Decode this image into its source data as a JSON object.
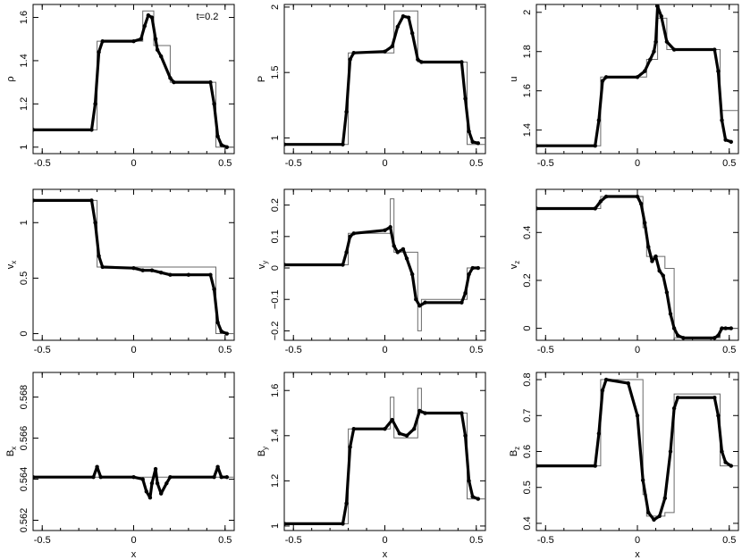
{
  "chart_data": [
    {
      "type": "line",
      "ylabel": "ρ",
      "ylabel_sub": "",
      "xlabel": "",
      "annotation": "t=0.2",
      "xlim": [
        -0.55,
        0.55
      ],
      "ylim": [
        0.97,
        1.66
      ],
      "xticks": [
        -0.5,
        0,
        0.5
      ],
      "xtick_labels": [
        "-0.5",
        "0",
        "0.5"
      ],
      "yticks": [
        1.0,
        1.2,
        1.4,
        1.6
      ],
      "ytick_labels": [
        "1",
        "1.2",
        "1.4",
        "1.6"
      ],
      "series": [
        {
          "kind": "reference",
          "x": [
            -0.55,
            -0.2,
            -0.2,
            0.05,
            0.05,
            0.11,
            0.11,
            0.16,
            0.16,
            0.2,
            0.2,
            0.45,
            0.45,
            0.55
          ],
          "y": [
            1.08,
            1.08,
            1.49,
            1.49,
            1.63,
            1.63,
            1.47,
            1.47,
            1.47,
            1.47,
            1.3,
            1.3,
            1.0,
            1.0
          ]
        },
        {
          "kind": "simulation",
          "x": [
            -0.55,
            -0.23,
            -0.21,
            -0.19,
            -0.17,
            0.0,
            0.04,
            0.06,
            0.08,
            0.1,
            0.12,
            0.13,
            0.15,
            0.2,
            0.22,
            0.42,
            0.44,
            0.46,
            0.48,
            0.51
          ],
          "y": [
            1.08,
            1.08,
            1.2,
            1.44,
            1.49,
            1.49,
            1.5,
            1.56,
            1.61,
            1.6,
            1.5,
            1.45,
            1.42,
            1.32,
            1.3,
            1.3,
            1.2,
            1.05,
            1.01,
            1.0
          ]
        }
      ]
    },
    {
      "type": "line",
      "ylabel": "P",
      "ylabel_sub": "",
      "xlabel": "",
      "xlim": [
        -0.55,
        0.55
      ],
      "ylim": [
        0.88,
        2.02
      ],
      "xticks": [
        -0.5,
        0,
        0.5
      ],
      "xtick_labels": [
        "-0.5",
        "0",
        "0.5"
      ],
      "yticks": [
        1.0,
        1.5,
        2.0
      ],
      "ytick_labels": [
        "1",
        "1.5",
        "2"
      ],
      "series": [
        {
          "kind": "reference",
          "x": [
            -0.55,
            -0.2,
            -0.2,
            0.05,
            0.05,
            0.18,
            0.18,
            0.45,
            0.45,
            0.55
          ],
          "y": [
            0.95,
            0.95,
            1.65,
            1.65,
            1.97,
            1.97,
            1.58,
            1.58,
            0.95,
            0.95
          ]
        },
        {
          "kind": "simulation",
          "x": [
            -0.55,
            -0.23,
            -0.21,
            -0.19,
            -0.17,
            0.0,
            0.04,
            0.07,
            0.1,
            0.13,
            0.15,
            0.18,
            0.2,
            0.42,
            0.44,
            0.46,
            0.48,
            0.51
          ],
          "y": [
            0.95,
            0.95,
            1.2,
            1.6,
            1.65,
            1.66,
            1.7,
            1.85,
            1.93,
            1.92,
            1.8,
            1.6,
            1.58,
            1.58,
            1.3,
            1.05,
            0.97,
            0.96
          ]
        }
      ]
    },
    {
      "type": "line",
      "ylabel": "u",
      "ylabel_sub": "",
      "xlabel": "",
      "xlim": [
        -0.55,
        0.55
      ],
      "ylim": [
        1.28,
        2.04
      ],
      "xticks": [
        -0.5,
        0,
        0.5
      ],
      "xtick_labels": [
        "-0.5",
        "0",
        "0.5"
      ],
      "yticks": [
        1.4,
        1.6,
        1.8,
        2.0
      ],
      "ytick_labels": [
        "1.4",
        "1.6",
        "1.8",
        "2"
      ],
      "series": [
        {
          "kind": "reference",
          "x": [
            -0.55,
            -0.2,
            -0.2,
            0.05,
            0.05,
            0.11,
            0.11,
            0.16,
            0.16,
            0.45,
            0.45,
            0.55
          ],
          "y": [
            1.32,
            1.32,
            1.67,
            1.67,
            1.76,
            1.76,
            1.97,
            1.97,
            1.81,
            1.81,
            1.5,
            1.5
          ]
        },
        {
          "kind": "simulation",
          "x": [
            -0.55,
            -0.23,
            -0.21,
            -0.19,
            -0.17,
            0.0,
            0.04,
            0.07,
            0.09,
            0.1,
            0.11,
            0.13,
            0.16,
            0.2,
            0.42,
            0.44,
            0.46,
            0.48,
            0.51
          ],
          "y": [
            1.32,
            1.32,
            1.45,
            1.65,
            1.67,
            1.67,
            1.7,
            1.76,
            1.8,
            1.85,
            2.03,
            1.98,
            1.85,
            1.81,
            1.81,
            1.7,
            1.45,
            1.35,
            1.34
          ]
        }
      ]
    },
    {
      "type": "line",
      "ylabel": "v",
      "ylabel_sub": "x",
      "xlabel": "",
      "xlim": [
        -0.55,
        0.55
      ],
      "ylim": [
        -0.06,
        1.3
      ],
      "xticks": [
        -0.5,
        0,
        0.5
      ],
      "xtick_labels": [
        "-0.5",
        "0",
        "0.5"
      ],
      "yticks": [
        0.0,
        0.5,
        1.0
      ],
      "ytick_labels": [
        "0",
        "0.5",
        "1"
      ],
      "series": [
        {
          "kind": "reference",
          "x": [
            -0.55,
            -0.2,
            -0.2,
            0.45,
            0.45,
            0.55
          ],
          "y": [
            1.2,
            1.2,
            0.6,
            0.6,
            0.0,
            0.0
          ]
        },
        {
          "kind": "simulation",
          "x": [
            -0.55,
            -0.23,
            -0.21,
            -0.19,
            -0.17,
            0.0,
            0.05,
            0.1,
            0.15,
            0.2,
            0.3,
            0.42,
            0.44,
            0.46,
            0.48,
            0.51
          ],
          "y": [
            1.2,
            1.2,
            1.0,
            0.7,
            0.6,
            0.59,
            0.57,
            0.57,
            0.55,
            0.53,
            0.53,
            0.53,
            0.4,
            0.1,
            0.02,
            0.0
          ]
        }
      ]
    },
    {
      "type": "line",
      "ylabel": "v",
      "ylabel_sub": "y",
      "xlabel": "",
      "xlim": [
        -0.55,
        0.55
      ],
      "ylim": [
        -0.23,
        0.25
      ],
      "xticks": [
        -0.5,
        0,
        0.5
      ],
      "xtick_labels": [
        "-0.5",
        "0",
        "0.5"
      ],
      "yticks": [
        -0.2,
        -0.1,
        0.0,
        0.1,
        0.2
      ],
      "ytick_labels": [
        "−0.2",
        "−0.1",
        "0",
        "0.1",
        "0.2"
      ],
      "series": [
        {
          "kind": "reference",
          "x": [
            -0.55,
            -0.2,
            -0.2,
            0.03,
            0.03,
            0.05,
            0.05,
            0.18,
            0.18,
            0.2,
            0.2,
            0.45,
            0.45,
            0.55
          ],
          "y": [
            0.01,
            0.01,
            0.11,
            0.11,
            0.22,
            0.22,
            0.05,
            0.05,
            -0.2,
            -0.2,
            -0.1,
            -0.1,
            0.0,
            0.0
          ]
        },
        {
          "kind": "simulation",
          "x": [
            -0.55,
            -0.23,
            -0.21,
            -0.19,
            -0.17,
            0.0,
            0.03,
            0.05,
            0.07,
            0.1,
            0.12,
            0.15,
            0.17,
            0.19,
            0.22,
            0.42,
            0.44,
            0.46,
            0.48,
            0.51
          ],
          "y": [
            0.01,
            0.01,
            0.05,
            0.1,
            0.11,
            0.12,
            0.13,
            0.07,
            0.05,
            0.06,
            0.03,
            -0.02,
            -0.1,
            -0.12,
            -0.11,
            -0.11,
            -0.08,
            -0.02,
            0.0,
            0.0
          ]
        }
      ]
    },
    {
      "type": "line",
      "ylabel": "v",
      "ylabel_sub": "z",
      "xlabel": "",
      "xlim": [
        -0.55,
        0.55
      ],
      "ylim": [
        -0.05,
        0.58
      ],
      "xticks": [
        -0.5,
        0,
        0.5
      ],
      "xtick_labels": [
        "-0.5",
        "0",
        "0.5"
      ],
      "yticks": [
        0.0,
        0.2,
        0.4
      ],
      "ytick_labels": [
        "0",
        "0.2",
        "0.4"
      ],
      "series": [
        {
          "kind": "reference",
          "x": [
            -0.55,
            -0.2,
            -0.2,
            0.03,
            0.03,
            0.05,
            0.05,
            0.15,
            0.15,
            0.2,
            0.2,
            0.45,
            0.45,
            0.55
          ],
          "y": [
            0.5,
            0.5,
            0.55,
            0.55,
            0.42,
            0.42,
            0.3,
            0.3,
            0.25,
            0.25,
            -0.04,
            -0.04,
            0.0,
            0.0
          ]
        },
        {
          "kind": "simulation",
          "x": [
            -0.55,
            -0.23,
            -0.2,
            -0.17,
            0.0,
            0.02,
            0.04,
            0.06,
            0.08,
            0.1,
            0.12,
            0.14,
            0.16,
            0.18,
            0.2,
            0.22,
            0.25,
            0.42,
            0.44,
            0.46,
            0.48,
            0.51
          ],
          "y": [
            0.5,
            0.5,
            0.53,
            0.55,
            0.55,
            0.52,
            0.44,
            0.34,
            0.28,
            0.3,
            0.24,
            0.22,
            0.15,
            0.06,
            0.0,
            -0.03,
            -0.04,
            -0.04,
            -0.03,
            0.0,
            0.0,
            0.0
          ]
        }
      ]
    },
    {
      "type": "line",
      "ylabel": "B",
      "ylabel_sub": "x",
      "xlabel": "x",
      "xlim": [
        -0.55,
        0.55
      ],
      "ylim": [
        0.5615,
        0.5692
      ],
      "xticks": [
        -0.5,
        0,
        0.5
      ],
      "xtick_labels": [
        "-0.5",
        "0",
        "0.5"
      ],
      "yticks": [
        0.562,
        0.564,
        0.566,
        0.568
      ],
      "ytick_labels": [
        "0.562",
        "0.564",
        "0.566",
        "0.568"
      ],
      "series": [
        {
          "kind": "reference",
          "x": [
            -0.55,
            0.55
          ],
          "y": [
            0.5641,
            0.5641
          ]
        },
        {
          "kind": "simulation",
          "x": [
            -0.55,
            -0.22,
            -0.2,
            -0.18,
            0.0,
            0.05,
            0.07,
            0.09,
            0.1,
            0.12,
            0.13,
            0.15,
            0.18,
            0.2,
            0.44,
            0.46,
            0.48,
            0.51
          ],
          "y": [
            0.5641,
            0.5641,
            0.5646,
            0.5641,
            0.5641,
            0.564,
            0.5634,
            0.5631,
            0.5638,
            0.5645,
            0.5638,
            0.5633,
            0.5638,
            0.5641,
            0.5641,
            0.5646,
            0.5641,
            0.5641
          ]
        }
      ]
    },
    {
      "type": "line",
      "ylabel": "B",
      "ylabel_sub": "y",
      "xlabel": "x",
      "xlim": [
        -0.55,
        0.55
      ],
      "ylim": [
        0.98,
        1.68
      ],
      "xticks": [
        -0.5,
        0,
        0.5
      ],
      "xtick_labels": [
        "-0.5",
        "0",
        "0.5"
      ],
      "yticks": [
        1.0,
        1.2,
        1.4,
        1.6
      ],
      "ytick_labels": [
        "1",
        "1.2",
        "1.4",
        "1.6"
      ],
      "series": [
        {
          "kind": "reference",
          "x": [
            -0.55,
            -0.2,
            -0.2,
            0.03,
            0.03,
            0.05,
            0.05,
            0.18,
            0.18,
            0.2,
            0.2,
            0.45,
            0.45,
            0.55
          ],
          "y": [
            1.01,
            1.01,
            1.43,
            1.43,
            1.57,
            1.57,
            1.39,
            1.39,
            1.61,
            1.61,
            1.5,
            1.5,
            1.12,
            1.12
          ]
        },
        {
          "kind": "simulation",
          "x": [
            -0.55,
            -0.23,
            -0.21,
            -0.19,
            -0.17,
            0.0,
            0.04,
            0.08,
            0.12,
            0.16,
            0.19,
            0.22,
            0.42,
            0.44,
            0.46,
            0.48,
            0.51
          ],
          "y": [
            1.01,
            1.01,
            1.1,
            1.35,
            1.43,
            1.43,
            1.47,
            1.41,
            1.4,
            1.43,
            1.51,
            1.5,
            1.5,
            1.4,
            1.2,
            1.13,
            1.12
          ]
        }
      ]
    },
    {
      "type": "line",
      "ylabel": "B",
      "ylabel_sub": "z",
      "xlabel": "x",
      "xlim": [
        -0.55,
        0.55
      ],
      "ylim": [
        0.38,
        0.82
      ],
      "xticks": [
        -0.5,
        0,
        0.5
      ],
      "xtick_labels": [
        "-0.5",
        "0",
        "0.5"
      ],
      "yticks": [
        0.4,
        0.5,
        0.6,
        0.7,
        0.8
      ],
      "ytick_labels": [
        "0.4",
        "0.5",
        "0.6",
        "0.7",
        "0.8"
      ],
      "series": [
        {
          "kind": "reference",
          "x": [
            -0.55,
            -0.2,
            -0.2,
            0.03,
            0.03,
            0.05,
            0.05,
            0.15,
            0.15,
            0.2,
            0.2,
            0.45,
            0.45,
            0.55
          ],
          "y": [
            0.56,
            0.56,
            0.8,
            0.8,
            0.48,
            0.48,
            0.42,
            0.42,
            0.43,
            0.43,
            0.76,
            0.76,
            0.56,
            0.56
          ]
        },
        {
          "kind": "simulation",
          "x": [
            -0.55,
            -0.23,
            -0.21,
            -0.19,
            -0.17,
            -0.05,
            0.0,
            0.03,
            0.06,
            0.09,
            0.12,
            0.15,
            0.18,
            0.2,
            0.22,
            0.42,
            0.44,
            0.46,
            0.48,
            0.51
          ],
          "y": [
            0.56,
            0.56,
            0.65,
            0.77,
            0.8,
            0.79,
            0.7,
            0.52,
            0.43,
            0.41,
            0.42,
            0.47,
            0.6,
            0.72,
            0.75,
            0.75,
            0.7,
            0.6,
            0.57,
            0.56
          ]
        }
      ]
    }
  ]
}
